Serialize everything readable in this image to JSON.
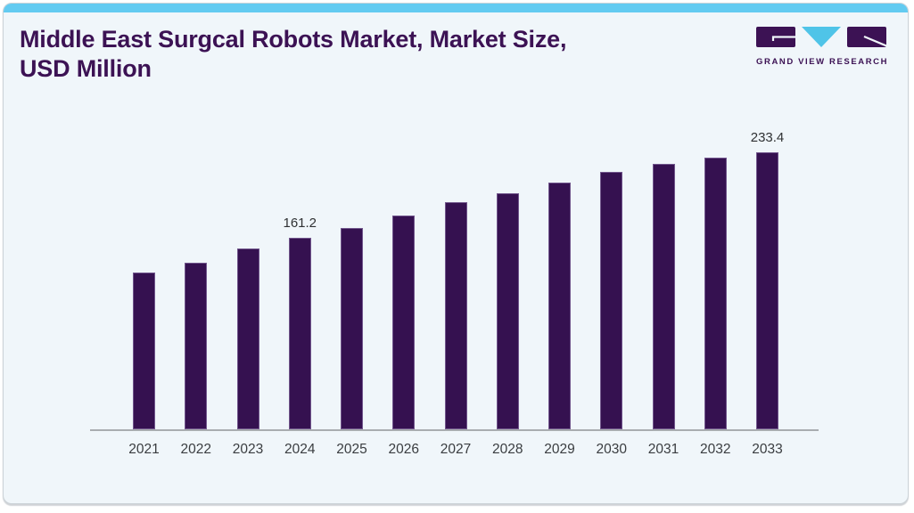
{
  "header": {
    "title_line1": "Middle East Surgcal Robots Market, Market Size,",
    "title_line2": "USD Million",
    "logo_text": "GRAND VIEW RESEARCH"
  },
  "colors": {
    "accent_blue": "#63cbf1",
    "logo_triangle_blue": "#4fc4e8",
    "bar_purple": "#351150",
    "title_purple": "#3c1254",
    "card_background": "#f0f6fa",
    "axis_line": "#a9adb0",
    "tick_text": "#3a3d40",
    "value_text": "#2f3133"
  },
  "chart_data": {
    "type": "bar",
    "title": "Middle East Surgcal Robots Market, Market Size, USD Million",
    "xlabel": "",
    "ylabel": "",
    "categories": [
      "2021",
      "2022",
      "2023",
      "2024",
      "2025",
      "2026",
      "2027",
      "2028",
      "2029",
      "2030",
      "2031",
      "2032",
      "2033"
    ],
    "values": [
      132.2,
      140.4,
      152.3,
      161.2,
      169.6,
      180.5,
      191.4,
      199.0,
      208.0,
      217.3,
      223.8,
      229.3,
      233.4
    ],
    "point_labels": {
      "3": "161.2",
      "12": "233.4"
    },
    "ylim": [
      0,
      257
    ],
    "grid": false,
    "legend": false,
    "bar_color": "#351150"
  }
}
